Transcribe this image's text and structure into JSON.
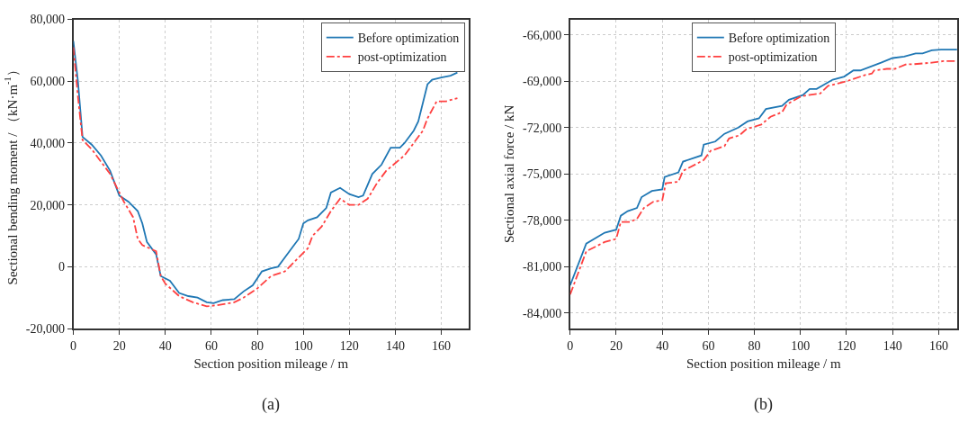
{
  "chart_data": [
    {
      "type": "line",
      "xlabel": "Section position mileage / m",
      "ylabel": "Sectional bending moment / （kN·m$^{-1}$）",
      "annotations": [
        "(a)"
      ],
      "xlim": [
        0,
        172
      ],
      "xticks": [
        0,
        20,
        40,
        60,
        80,
        100,
        120,
        140,
        160
      ],
      "ylim": [
        -20000,
        80000
      ],
      "yticks": [
        {
          "value": -20000,
          "label": "-20,000"
        },
        0,
        {
          "value": 20000,
          "label": "20,000"
        },
        {
          "value": 40000,
          "label": "40,000"
        },
        {
          "value": 60000,
          "label": "60,000"
        },
        {
          "value": 80000,
          "label": "80,000"
        }
      ],
      "grid": true,
      "legend": "top right",
      "series": [
        {
          "name": "Before optimization",
          "color": "#1f77b4",
          "line_style": "solid",
          "x": [
            0,
            2,
            4,
            8,
            12,
            16,
            18,
            20,
            24,
            28,
            30,
            32,
            36,
            38,
            42,
            46,
            50,
            54,
            58,
            61,
            65,
            70,
            74,
            78,
            82,
            86,
            89,
            92,
            96,
            98,
            100,
            102,
            106,
            110,
            112,
            116,
            120,
            124,
            126,
            130,
            134,
            138,
            142,
            144,
            148,
            150,
            154,
            156,
            160,
            164,
            167
          ],
          "values": [
            73000,
            60000,
            42000,
            39500,
            36000,
            31000,
            27000,
            23000,
            21000,
            18000,
            14000,
            8000,
            4000,
            -3000,
            -4500,
            -8500,
            -9500,
            -10000,
            -11500,
            -11800,
            -10800,
            -10500,
            -8000,
            -6000,
            -1500,
            -500,
            0,
            3000,
            7000,
            9000,
            14000,
            15000,
            16000,
            19000,
            24000,
            25500,
            23500,
            22500,
            23000,
            30000,
            33000,
            38500,
            38500,
            40000,
            44000,
            47000,
            59000,
            60500,
            61200,
            61800,
            62800
          ]
        },
        {
          "name": "post-optimization",
          "color": "#ff4040",
          "line_style": "dashdot",
          "x": [
            0,
            2,
            4,
            8,
            12,
            16,
            18,
            22,
            26,
            28,
            30,
            36,
            38,
            40,
            46,
            52,
            58,
            62,
            70,
            74,
            80,
            86,
            92,
            98,
            102,
            104,
            108,
            112,
            116,
            120,
            124,
            128,
            132,
            136,
            140,
            144,
            148,
            152,
            154,
            158,
            162,
            167
          ],
          "values": [
            71000,
            55000,
            41000,
            38000,
            34000,
            30000,
            27000,
            21000,
            16000,
            9000,
            7000,
            5000,
            -3000,
            -5500,
            -9500,
            -11500,
            -12800,
            -12500,
            -11500,
            -10000,
            -7000,
            -3000,
            -1500,
            3000,
            6000,
            10000,
            13000,
            18000,
            22000,
            20000,
            20000,
            22000,
            27000,
            31000,
            33500,
            36000,
            40000,
            44000,
            48000,
            53500,
            53500,
            54500
          ]
        }
      ]
    },
    {
      "type": "line",
      "xlabel": "Section position mileage / m",
      "ylabel": "Sectional axial force / kN",
      "annotations": [
        "(b)"
      ],
      "xlim": [
        0,
        168
      ],
      "xticks": [
        0,
        20,
        40,
        60,
        80,
        100,
        120,
        140,
        160
      ],
      "ylim": [
        -85000,
        -65000
      ],
      "yticks": [
        {
          "value": -84000,
          "label": "-84,000"
        },
        {
          "value": -81000,
          "label": "-81,000"
        },
        {
          "value": -78000,
          "label": "-78,000"
        },
        {
          "value": -75000,
          "label": "-75,000"
        },
        {
          "value": -72000,
          "label": "-72,000"
        },
        {
          "value": -69000,
          "label": "-69,000"
        },
        {
          "value": -66000,
          "label": "-66,000"
        }
      ],
      "grid": true,
      "legend": "top",
      "series": [
        {
          "name": "Before optimization",
          "color": "#1f77b4",
          "line_style": "solid",
          "x": [
            0,
            7,
            15,
            20,
            22,
            25,
            29,
            31,
            35.5,
            40,
            41,
            47,
            49,
            57,
            58,
            63,
            67,
            73,
            77,
            82,
            85,
            92,
            95,
            101,
            104,
            107,
            114,
            119,
            123,
            126,
            135,
            140,
            145,
            150,
            153,
            157,
            161,
            168
          ],
          "values": [
            -82200,
            -79500,
            -78800,
            -78600,
            -77700,
            -77400,
            -77200,
            -76500,
            -76100,
            -76000,
            -75200,
            -74900,
            -74200,
            -73800,
            -73100,
            -72900,
            -72400,
            -72000,
            -71600,
            -71400,
            -70800,
            -70600,
            -70200,
            -69900,
            -69500,
            -69500,
            -68900,
            -68700,
            -68300,
            -68300,
            -67800,
            -67500,
            -67400,
            -67200,
            -67200,
            -67000,
            -66950,
            -66950
          ]
        },
        {
          "name": "post-optimization",
          "color": "#ff4040",
          "line_style": "dashdot",
          "x": [
            0,
            7,
            15,
            20,
            22,
            26,
            29,
            32,
            36,
            40,
            41.5,
            47,
            49,
            58,
            61,
            67,
            69,
            73.5,
            76.5,
            83,
            87,
            92,
            94,
            100,
            103,
            108.5,
            112,
            120,
            122,
            128,
            131,
            132,
            137.5,
            141,
            146,
            149,
            157,
            162,
            168
          ],
          "values": [
            -82800,
            -80000,
            -79400,
            -79200,
            -78100,
            -78100,
            -77900,
            -77200,
            -76800,
            -76700,
            -75600,
            -75500,
            -74800,
            -74100,
            -73500,
            -73200,
            -72700,
            -72500,
            -72100,
            -71800,
            -71300,
            -71000,
            -70500,
            -70000,
            -69900,
            -69800,
            -69300,
            -69000,
            -68900,
            -68600,
            -68500,
            -68300,
            -68200,
            -68200,
            -67900,
            -67900,
            -67800,
            -67700,
            -67700
          ]
        }
      ]
    }
  ]
}
